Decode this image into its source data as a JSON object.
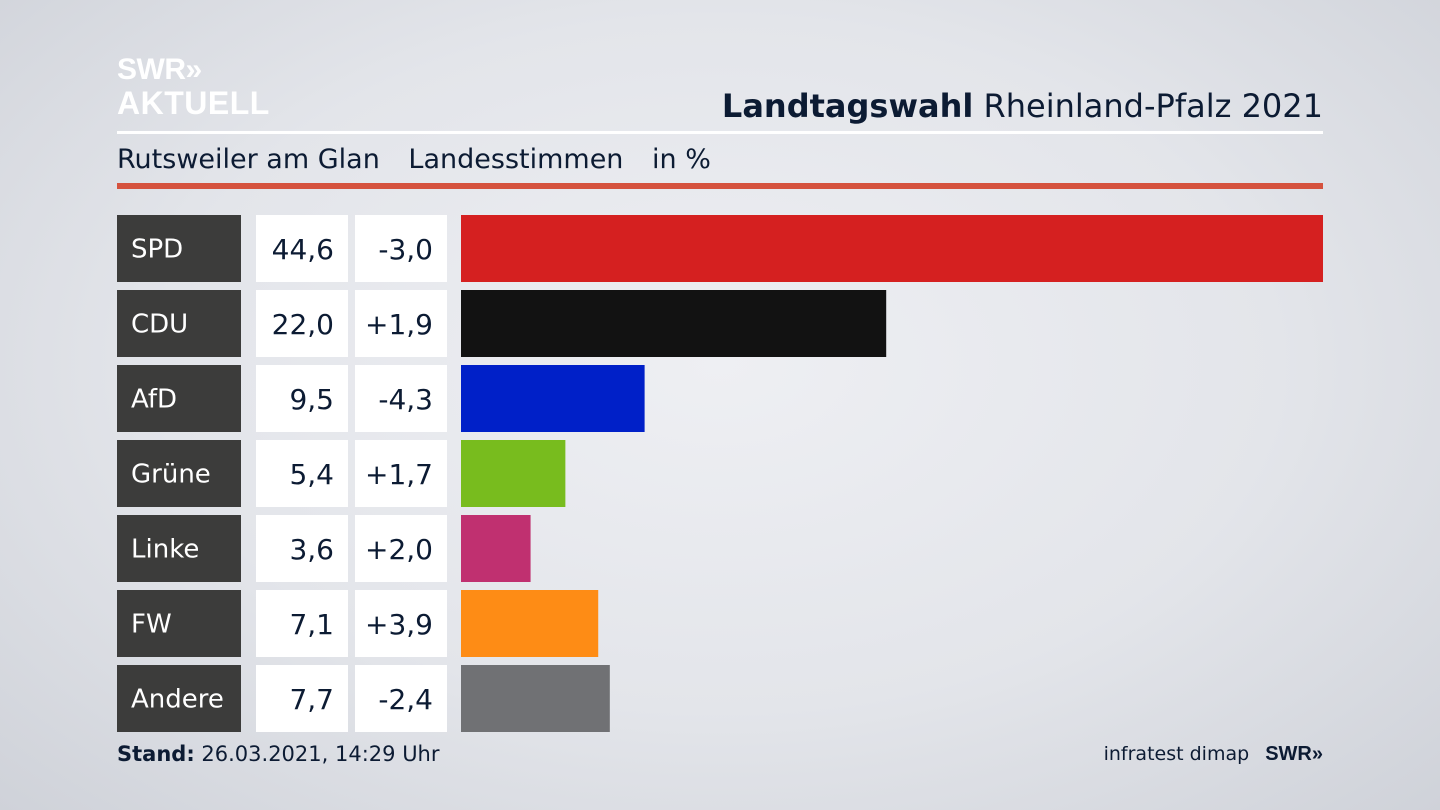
{
  "logo": {
    "line1": "SWR»",
    "line2": "AKTUELL"
  },
  "header": {
    "title_bold": "Landtagswahl",
    "title_rest": "Rheinland-Pfalz 2021"
  },
  "subheader": {
    "location": "Rutsweiler am Glan",
    "vote_type": "Landesstimmen",
    "unit": "in %"
  },
  "footer": {
    "stand_label": "Stand:",
    "stand_value": "26.03.2021, 14:29 Uhr",
    "source": "infratest dimap",
    "broadcaster": "SWR»"
  },
  "colors": {
    "label_bg": "#3c3c3b",
    "accent_rule": "#d5523e"
  },
  "chart_data": {
    "type": "bar",
    "orientation": "horizontal",
    "categories": [
      "SPD",
      "CDU",
      "AfD",
      "Grüne",
      "Linke",
      "FW",
      "Andere"
    ],
    "values": [
      44.6,
      22.0,
      9.5,
      5.4,
      3.6,
      7.1,
      7.7
    ],
    "value_labels": [
      "44,6",
      "22,0",
      "9,5",
      "5,4",
      "3,6",
      "7,1",
      "7,7"
    ],
    "changes": [
      -3.0,
      1.9,
      -4.3,
      1.7,
      2.0,
      3.9,
      -2.4
    ],
    "change_labels": [
      "-3,0",
      "+1,9",
      "-4,3",
      "+1,7",
      "+2,0",
      "+3,9",
      "-2,4"
    ],
    "colors": [
      "#d52020",
      "#121212",
      "#0020c8",
      "#78bc1e",
      "#c03070",
      "#fe8c15",
      "#707174"
    ],
    "xlim": [
      0,
      44.6
    ],
    "grid": false,
    "legend": "none"
  }
}
